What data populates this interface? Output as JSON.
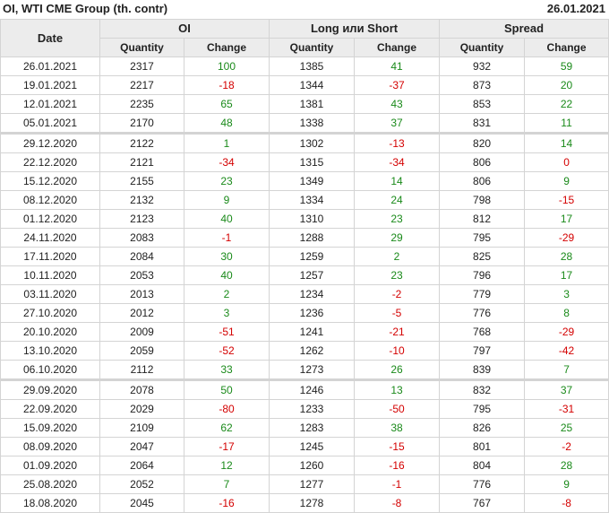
{
  "title": "OI, WTI CME Group (th. contr)",
  "report_date": "26.01.2021",
  "headers": {
    "date": "Date",
    "groups": [
      "OI",
      "Long или Short",
      "Spread"
    ],
    "quantity": "Quantity",
    "change": "Change"
  },
  "colors": {
    "positive": "#1a8a1a",
    "negative": "#d40000"
  },
  "rows": [
    [
      "26.01.2021",
      2317,
      100,
      1385,
      41,
      932,
      59
    ],
    [
      "19.01.2021",
      2217,
      -18,
      1344,
      -37,
      873,
      20
    ],
    [
      "12.01.2021",
      2235,
      65,
      1381,
      43,
      853,
      22
    ],
    [
      "05.01.2021",
      2170,
      48,
      1338,
      37,
      831,
      11
    ],
    [
      "29.12.2020",
      2122,
      1,
      1302,
      -13,
      820,
      14
    ],
    [
      "22.12.2020",
      2121,
      -34,
      1315,
      -34,
      806,
      0
    ],
    [
      "15.12.2020",
      2155,
      23,
      1349,
      14,
      806,
      9
    ],
    [
      "08.12.2020",
      2132,
      9,
      1334,
      24,
      798,
      -15
    ],
    [
      "01.12.2020",
      2123,
      40,
      1310,
      23,
      812,
      17
    ],
    [
      "24.11.2020",
      2083,
      -1,
      1288,
      29,
      795,
      -29
    ],
    [
      "17.11.2020",
      2084,
      30,
      1259,
      2,
      825,
      28
    ],
    [
      "10.11.2020",
      2053,
      40,
      1257,
      23,
      796,
      17
    ],
    [
      "03.11.2020",
      2013,
      2,
      1234,
      -2,
      779,
      3
    ],
    [
      "27.10.2020",
      2012,
      3,
      1236,
      -5,
      776,
      8
    ],
    [
      "20.10.2020",
      2009,
      -51,
      1241,
      -21,
      768,
      -29
    ],
    [
      "13.10.2020",
      2059,
      -52,
      1262,
      -10,
      797,
      -42
    ],
    [
      "06.10.2020",
      2112,
      33,
      1273,
      26,
      839,
      7
    ],
    [
      "29.09.2020",
      2078,
      50,
      1246,
      13,
      832,
      37
    ],
    [
      "22.09.2020",
      2029,
      -80,
      1233,
      -50,
      795,
      -31
    ],
    [
      "15.09.2020",
      2109,
      62,
      1283,
      38,
      826,
      25
    ],
    [
      "08.09.2020",
      2047,
      -17,
      1245,
      -15,
      801,
      -2
    ],
    [
      "01.09.2020",
      2064,
      12,
      1260,
      -16,
      804,
      28
    ],
    [
      "25.08.2020",
      2052,
      7,
      1277,
      -1,
      776,
      9
    ],
    [
      "18.08.2020",
      2045,
      -16,
      1278,
      -8,
      767,
      -8
    ]
  ]
}
